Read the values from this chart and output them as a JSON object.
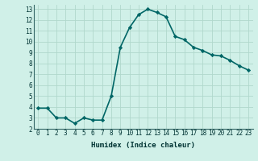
{
  "x": [
    0,
    1,
    2,
    3,
    4,
    5,
    6,
    7,
    8,
    9,
    10,
    11,
    12,
    13,
    14,
    15,
    16,
    17,
    18,
    19,
    20,
    21,
    22,
    23
  ],
  "y": [
    3.9,
    3.9,
    3.0,
    3.0,
    2.5,
    3.0,
    2.8,
    2.8,
    5.0,
    9.5,
    11.3,
    12.5,
    13.0,
    12.7,
    12.3,
    10.5,
    10.2,
    9.5,
    9.2,
    8.8,
    8.7,
    8.3,
    7.8,
    7.4
  ],
  "line_color": "#006666",
  "marker": "D",
  "marker_size": 2.2,
  "bg_color": "#d0f0e8",
  "grid_color": "#b0d8cc",
  "xlabel": "Humidex (Indice chaleur)",
  "xlim": [
    -0.5,
    23.5
  ],
  "ylim": [
    2.0,
    13.4
  ],
  "yticks": [
    2,
    3,
    4,
    5,
    6,
    7,
    8,
    9,
    10,
    11,
    12,
    13
  ],
  "xticks": [
    0,
    1,
    2,
    3,
    4,
    5,
    6,
    7,
    8,
    9,
    10,
    11,
    12,
    13,
    14,
    15,
    16,
    17,
    18,
    19,
    20,
    21,
    22,
    23
  ],
  "line_width": 1.2,
  "tick_fontsize": 5.5,
  "xlabel_fontsize": 6.5
}
